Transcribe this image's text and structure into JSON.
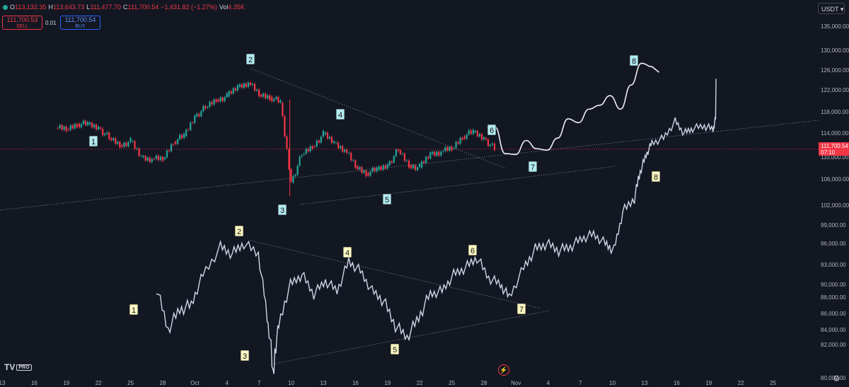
{
  "header": {
    "o_label": "O",
    "o_value": "113,132.35",
    "h_label": "H",
    "h_value": "113,643.73",
    "l_label": "L",
    "l_value": "111,477.70",
    "c_label": "C",
    "c_value": "111,700.54",
    "change": "−1,431.82 (−1.27%)",
    "vol_label": "Vol",
    "vol_value": "4.35K"
  },
  "trade": {
    "sell_price": "111,700.53",
    "sell_label": "SELL",
    "spread": "0.01",
    "buy_price": "111,700.54",
    "buy_label": "BUY"
  },
  "toolbar": {
    "currency": "USDT"
  },
  "price_tag": {
    "price": "111,700.54",
    "countdown": "07:10"
  },
  "logo": {
    "text": "TV",
    "pro": "PRO"
  },
  "colors": {
    "background": "#131722",
    "up": "#26a69a",
    "down": "#f23645",
    "projection": "#e8e8f0",
    "wave_label_upper": "#b2ebf2",
    "wave_label_lower": "#fff9c4"
  },
  "icons": [
    "flash-icon",
    "gear-icon",
    "status-dot-icon"
  ],
  "chart_data": {
    "type": "line",
    "y_tick_labels": [
      "135,000.00",
      "130,000.00",
      "126,000.00",
      "122,000.00",
      "118,000.00",
      "114,000.00",
      "110,000.00",
      "106,000.00",
      "102,000.00",
      "99,000.00",
      "96,000.00",
      "93,000.00",
      "90,000.00",
      "88,000.00",
      "86,000.00",
      "84,000.00",
      "82,000.00",
      "80,000.00"
    ],
    "x_tick_labels": [
      "13",
      "16",
      "19",
      "22",
      "25",
      "28",
      "Oct",
      "4",
      "7",
      "10",
      "13",
      "16",
      "19",
      "22",
      "25",
      "28",
      "Nov",
      "4",
      "7",
      "10",
      "13",
      "16",
      "19",
      "22",
      "25"
    ],
    "current_price": 111700.54,
    "current_price_line": true,
    "series": [
      {
        "kind": "candles",
        "points": [
          [
            "18",
            116100
          ],
          [
            "19",
            115800
          ],
          [
            "20",
            117000
          ],
          [
            "21",
            116800
          ],
          [
            "22",
            116200
          ],
          [
            "23",
            114000
          ],
          [
            "24",
            112600
          ],
          [
            "25",
            113300
          ],
          [
            "26",
            110000
          ],
          [
            "27",
            109700
          ],
          [
            "28",
            109600
          ],
          [
            "29",
            113300
          ],
          [
            "30",
            114400
          ],
          [
            "Oct",
            118500
          ],
          [
            "2",
            120300
          ],
          [
            "3",
            122000
          ],
          [
            "4",
            122600
          ],
          [
            "5",
            124600
          ],
          [
            "6",
            125500
          ],
          [
            "7",
            123000
          ],
          [
            "8",
            122600
          ],
          [
            "9",
            121300
          ],
          [
            "10",
            104800
          ],
          [
            "11",
            110600
          ],
          [
            "12",
            112300
          ],
          [
            "13",
            114800
          ],
          [
            "14",
            113000
          ],
          [
            "15",
            111600
          ],
          [
            "16",
            108200
          ],
          [
            "17",
            106800
          ],
          [
            "18",
            107400
          ],
          [
            "19",
            108400
          ],
          [
            "20",
            111500
          ],
          [
            "21",
            108400
          ],
          [
            "22",
            107900
          ],
          [
            "23",
            110700
          ],
          [
            "24",
            111200
          ],
          [
            "25",
            111800
          ],
          [
            "26",
            114400
          ],
          [
            "27",
            115200
          ],
          [
            "28",
            114000
          ],
          [
            "29",
            111700
          ]
        ]
      },
      {
        "kind": "line-overlay",
        "points": [
          [
            0,
            89300
          ],
          [
            4,
            84000
          ],
          [
            8,
            86500
          ],
          [
            12,
            87000
          ],
          [
            16,
            91500
          ],
          [
            22,
            95500
          ],
          [
            26,
            94500
          ],
          [
            30,
            96000
          ],
          [
            35,
            94500
          ],
          [
            38,
            85500
          ],
          [
            40,
            80000
          ],
          [
            42,
            84500
          ],
          [
            46,
            90000
          ],
          [
            50,
            91500
          ],
          [
            54,
            88500
          ],
          [
            58,
            90500
          ],
          [
            62,
            89000
          ],
          [
            66,
            93500
          ],
          [
            70,
            92000
          ],
          [
            74,
            89000
          ],
          [
            78,
            87500
          ],
          [
            82,
            84500
          ],
          [
            86,
            83000
          ],
          [
            90,
            85500
          ],
          [
            94,
            88500
          ],
          [
            98,
            89000
          ],
          [
            102,
            91500
          ],
          [
            106,
            92500
          ],
          [
            110,
            94000
          ],
          [
            114,
            91000
          ],
          [
            118,
            90000
          ],
          [
            121,
            88000
          ],
          [
            126,
            92500
          ],
          [
            130,
            95200
          ],
          [
            134,
            96000
          ],
          [
            138,
            95000
          ],
          [
            142,
            95500
          ],
          [
            146,
            96800
          ],
          [
            150,
            97500
          ],
          [
            154,
            96000
          ],
          [
            157,
            95000
          ],
          [
            160,
            101000
          ],
          [
            164,
            103000
          ],
          [
            166,
            107000
          ],
          [
            168,
            110500
          ],
          [
            170,
            113000
          ],
          [
            174,
            114000
          ],
          [
            178,
            117500
          ],
          [
            181,
            115000
          ],
          [
            184,
            116000
          ],
          [
            188,
            116500
          ],
          [
            191,
            115800
          ],
          [
            192,
            118500
          ]
        ]
      },
      {
        "kind": "projection",
        "points": [
          [
            "29",
            116400
          ],
          [
            "30",
            110800
          ],
          [
            "31",
            110600
          ],
          [
            "Nov",
            113500
          ],
          [
            "2",
            111800
          ],
          [
            "3",
            111500
          ],
          [
            "4",
            114000
          ],
          [
            "5",
            118000
          ],
          [
            "6",
            117200
          ],
          [
            "7",
            120000
          ],
          [
            "8",
            120800
          ],
          [
            "9",
            122800
          ],
          [
            "10",
            120000
          ],
          [
            "11",
            125000
          ],
          [
            "12",
            129500
          ],
          [
            "13",
            128800
          ]
        ]
      }
    ],
    "wave_labels_upper": [
      "1",
      "2",
      "3",
      "4",
      "5",
      "6",
      "7",
      "8"
    ],
    "wave_labels_lower": [
      "1",
      "2",
      "3",
      "4",
      "5",
      "6",
      "7",
      "8"
    ]
  }
}
